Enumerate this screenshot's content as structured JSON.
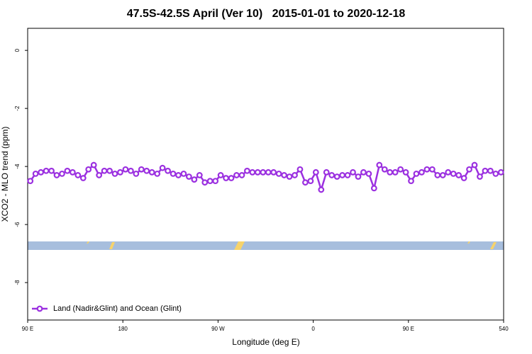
{
  "chart_data": {
    "type": "line",
    "title": "47.5S-42.5S April (Ver 10)   2015-01-01 to 2020-12-18",
    "x_label": "Longitude (deg E)",
    "y_label": "XCO2 - MLO trend (ppm)",
    "x": [
      92.5,
      97.5,
      102.5,
      107.5,
      112.5,
      117.5,
      122.5,
      127.5,
      132.5,
      137.5,
      142.5,
      147.5,
      152.5,
      157.5,
      162.5,
      167.5,
      172.5,
      177.5,
      182.5,
      187.5,
      192.5,
      197.5,
      202.5,
      207.5,
      212.5,
      217.5,
      222.5,
      227.5,
      232.5,
      237.5,
      242.5,
      247.5,
      252.5,
      257.5,
      262.5,
      267.5,
      272.5,
      277.5,
      282.5,
      287.5,
      292.5,
      297.5,
      302.5,
      307.5,
      312.5,
      317.5,
      322.5,
      327.5,
      332.5,
      337.5,
      342.5,
      347.5,
      352.5,
      357.5,
      362.5,
      367.5,
      372.5,
      377.5,
      382.5,
      387.5,
      392.5,
      397.5,
      402.5,
      407.5,
      412.5,
      417.5,
      422.5,
      427.5,
      432.5,
      437.5,
      442.5,
      447.5,
      452.5,
      457.5,
      462.5,
      467.5,
      472.5,
      477.5,
      482.5,
      487.5,
      492.5,
      497.5,
      502.5,
      507.5,
      512.5,
      517.5,
      522.5,
      527.5,
      532.5,
      537.5
    ],
    "series": [
      {
        "name": "Land (Nadir&Glint) and Ocean (Glint)",
        "color": "#9b30e0",
        "values": [
          -4.5,
          -4.25,
          -4.2,
          -4.15,
          -4.15,
          -4.3,
          -4.25,
          -4.15,
          -4.2,
          -4.3,
          -4.4,
          -4.1,
          -3.95,
          -4.3,
          -4.15,
          -4.15,
          -4.25,
          -4.2,
          -4.1,
          -4.15,
          -4.25,
          -4.1,
          -4.15,
          -4.2,
          -4.25,
          -4.05,
          -4.15,
          -4.25,
          -4.3,
          -4.25,
          -4.35,
          -4.45,
          -4.3,
          -4.55,
          -4.5,
          -4.5,
          -4.3,
          -4.4,
          -4.4,
          -4.3,
          -4.3,
          -4.15,
          -4.2,
          -4.2,
          -4.2,
          -4.2,
          -4.2,
          -4.25,
          -4.3,
          -4.35,
          -4.3,
          -4.1,
          -4.55,
          -4.5,
          -4.2,
          -4.8,
          -4.2,
          -4.3,
          -4.35,
          -4.3,
          -4.3,
          -4.2,
          -4.35,
          -4.2,
          -4.25,
          -4.75,
          -3.95,
          -4.1,
          -4.2,
          -4.2,
          -4.1,
          -4.2,
          -4.5,
          -4.25,
          -4.2,
          -4.1,
          -4.1,
          -4.3,
          -4.3,
          -4.2,
          -4.25,
          -4.3,
          -4.4,
          -4.1,
          -3.95,
          -4.35,
          -4.15,
          -4.15,
          -4.25,
          -4.2
        ]
      }
    ],
    "xlim": [
      90,
      540
    ],
    "xticks": [
      {
        "value": 90,
        "label": "90 E"
      },
      180,
      {
        "value": 270,
        "label": "90 W"
      },
      {
        "value": 360,
        "label": "0"
      },
      {
        "value": 450,
        "label": "90 E"
      },
      540
    ],
    "ylim": [
      -9.29,
      0.76
    ],
    "yticks": [
      0,
      -2,
      -4,
      -6,
      -8
    ],
    "legend": "bottom-left"
  }
}
